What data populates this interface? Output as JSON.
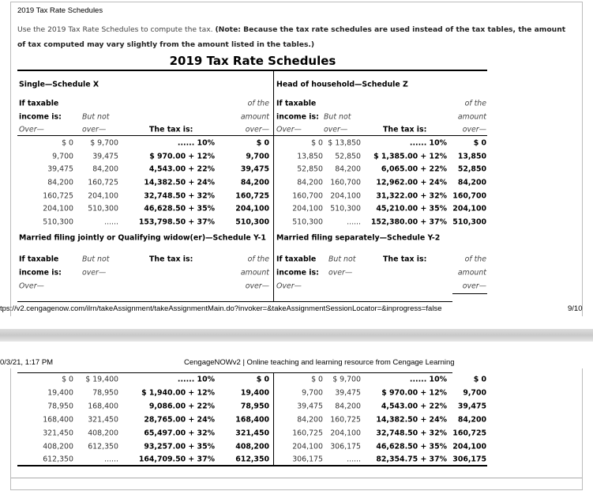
{
  "page_title": "2019 Tax Rate Schedules",
  "intro_text": "Use the 2019 Tax Rate Schedules to compute the tax.",
  "intro_note": "(Note: Because the tax rate schedules are used instead of the tax tables, the amount of tax computed may vary slightly from the amount listed in the tables.)",
  "heading": "2019 Tax Rate Schedules",
  "col_labels": {
    "if_taxable": "If taxable",
    "income_is": "income is:",
    "over": "Over—",
    "but_not": "But not",
    "over_lc": "over—",
    "the_tax_is": "The tax is:",
    "of_the": "of the",
    "amount": "amount"
  },
  "schedules": [
    {
      "title": "Single—Schedule X",
      "rows": [
        [
          "$ 0",
          "$ 9,700",
          "...... 10%",
          "$ 0"
        ],
        [
          "9,700",
          "39,475",
          "$ 970.00 + 12%",
          "9,700"
        ],
        [
          "39,475",
          "84,200",
          "4,543.00 + 22%",
          "39,475"
        ],
        [
          "84,200",
          "160,725",
          "14,382.50 + 24%",
          "84,200"
        ],
        [
          "160,725",
          "204,100",
          "32,748.50 + 32%",
          "160,725"
        ],
        [
          "204,100",
          "510,300",
          "46,628.50 + 35%",
          "204,100"
        ],
        [
          "510,300",
          "......",
          "153,798.50 + 37%",
          "510,300"
        ]
      ]
    },
    {
      "title": "Head of household—Schedule Z",
      "rows": [
        [
          "$ 0",
          "$ 13,850",
          "...... 10%",
          "$ 0"
        ],
        [
          "13,850",
          "52,850",
          "$ 1,385.00 + 12%",
          "13,850"
        ],
        [
          "52,850",
          "84,200",
          "6,065.00 + 22%",
          "52,850"
        ],
        [
          "84,200",
          "160,700",
          "12,962.00 + 24%",
          "84,200"
        ],
        [
          "160,700",
          "204,100",
          "31,322.00 + 32%",
          "160,700"
        ],
        [
          "204,100",
          "510,300",
          "45,210.00 + 35%",
          "204,100"
        ],
        [
          "510,300",
          "......",
          "152,380.00 + 37%",
          "510,300"
        ]
      ]
    },
    {
      "title": "Married filing jointly or Qualifying widow(er)—Schedule Y-1",
      "rows": [
        [
          "$ 0",
          "$ 19,400",
          "...... 10%",
          "$ 0"
        ],
        [
          "19,400",
          "78,950",
          "$ 1,940.00 + 12%",
          "19,400"
        ],
        [
          "78,950",
          "168,400",
          "9,086.00 + 22%",
          "78,950"
        ],
        [
          "168,400",
          "321,450",
          "28,765.00 + 24%",
          "168,400"
        ],
        [
          "321,450",
          "408,200",
          "65,497.00 + 32%",
          "321,450"
        ],
        [
          "408,200",
          "612,350",
          "93,257.00 + 35%",
          "408,200"
        ],
        [
          "612,350",
          "......",
          "164,709.50 + 37%",
          "612,350"
        ]
      ]
    },
    {
      "title": "Married filing separately—Schedule Y-2",
      "rows": [
        [
          "$ 0",
          "$ 9,700",
          "...... 10%",
          "$ 0"
        ],
        [
          "9,700",
          "39,475",
          "$ 970.00 + 12%",
          "9,700"
        ],
        [
          "39,475",
          "84,200",
          "4,543.00 + 22%",
          "39,475"
        ],
        [
          "84,200",
          "160,725",
          "14,382.50 + 24%",
          "84,200"
        ],
        [
          "160,725",
          "204,100",
          "32,748.50 + 32%",
          "160,725"
        ],
        [
          "204,100",
          "306,175",
          "46,628.50 + 35%",
          "204,100"
        ],
        [
          "306,175",
          "......",
          "82,354.75 + 37%",
          "306,175"
        ]
      ]
    }
  ],
  "footer_url": "tps://v2.cengagenow.com/ilrn/takeAssignment/takeAssignmentMain.do?invoker=&takeAssignmentSessionLocator=&inprogress=false",
  "footer_page": "9/10",
  "header_date": "0/3/21, 1:17 PM",
  "header_site": "CengageNOWv2 | Online teaching and learning resource from Cengage Learning"
}
